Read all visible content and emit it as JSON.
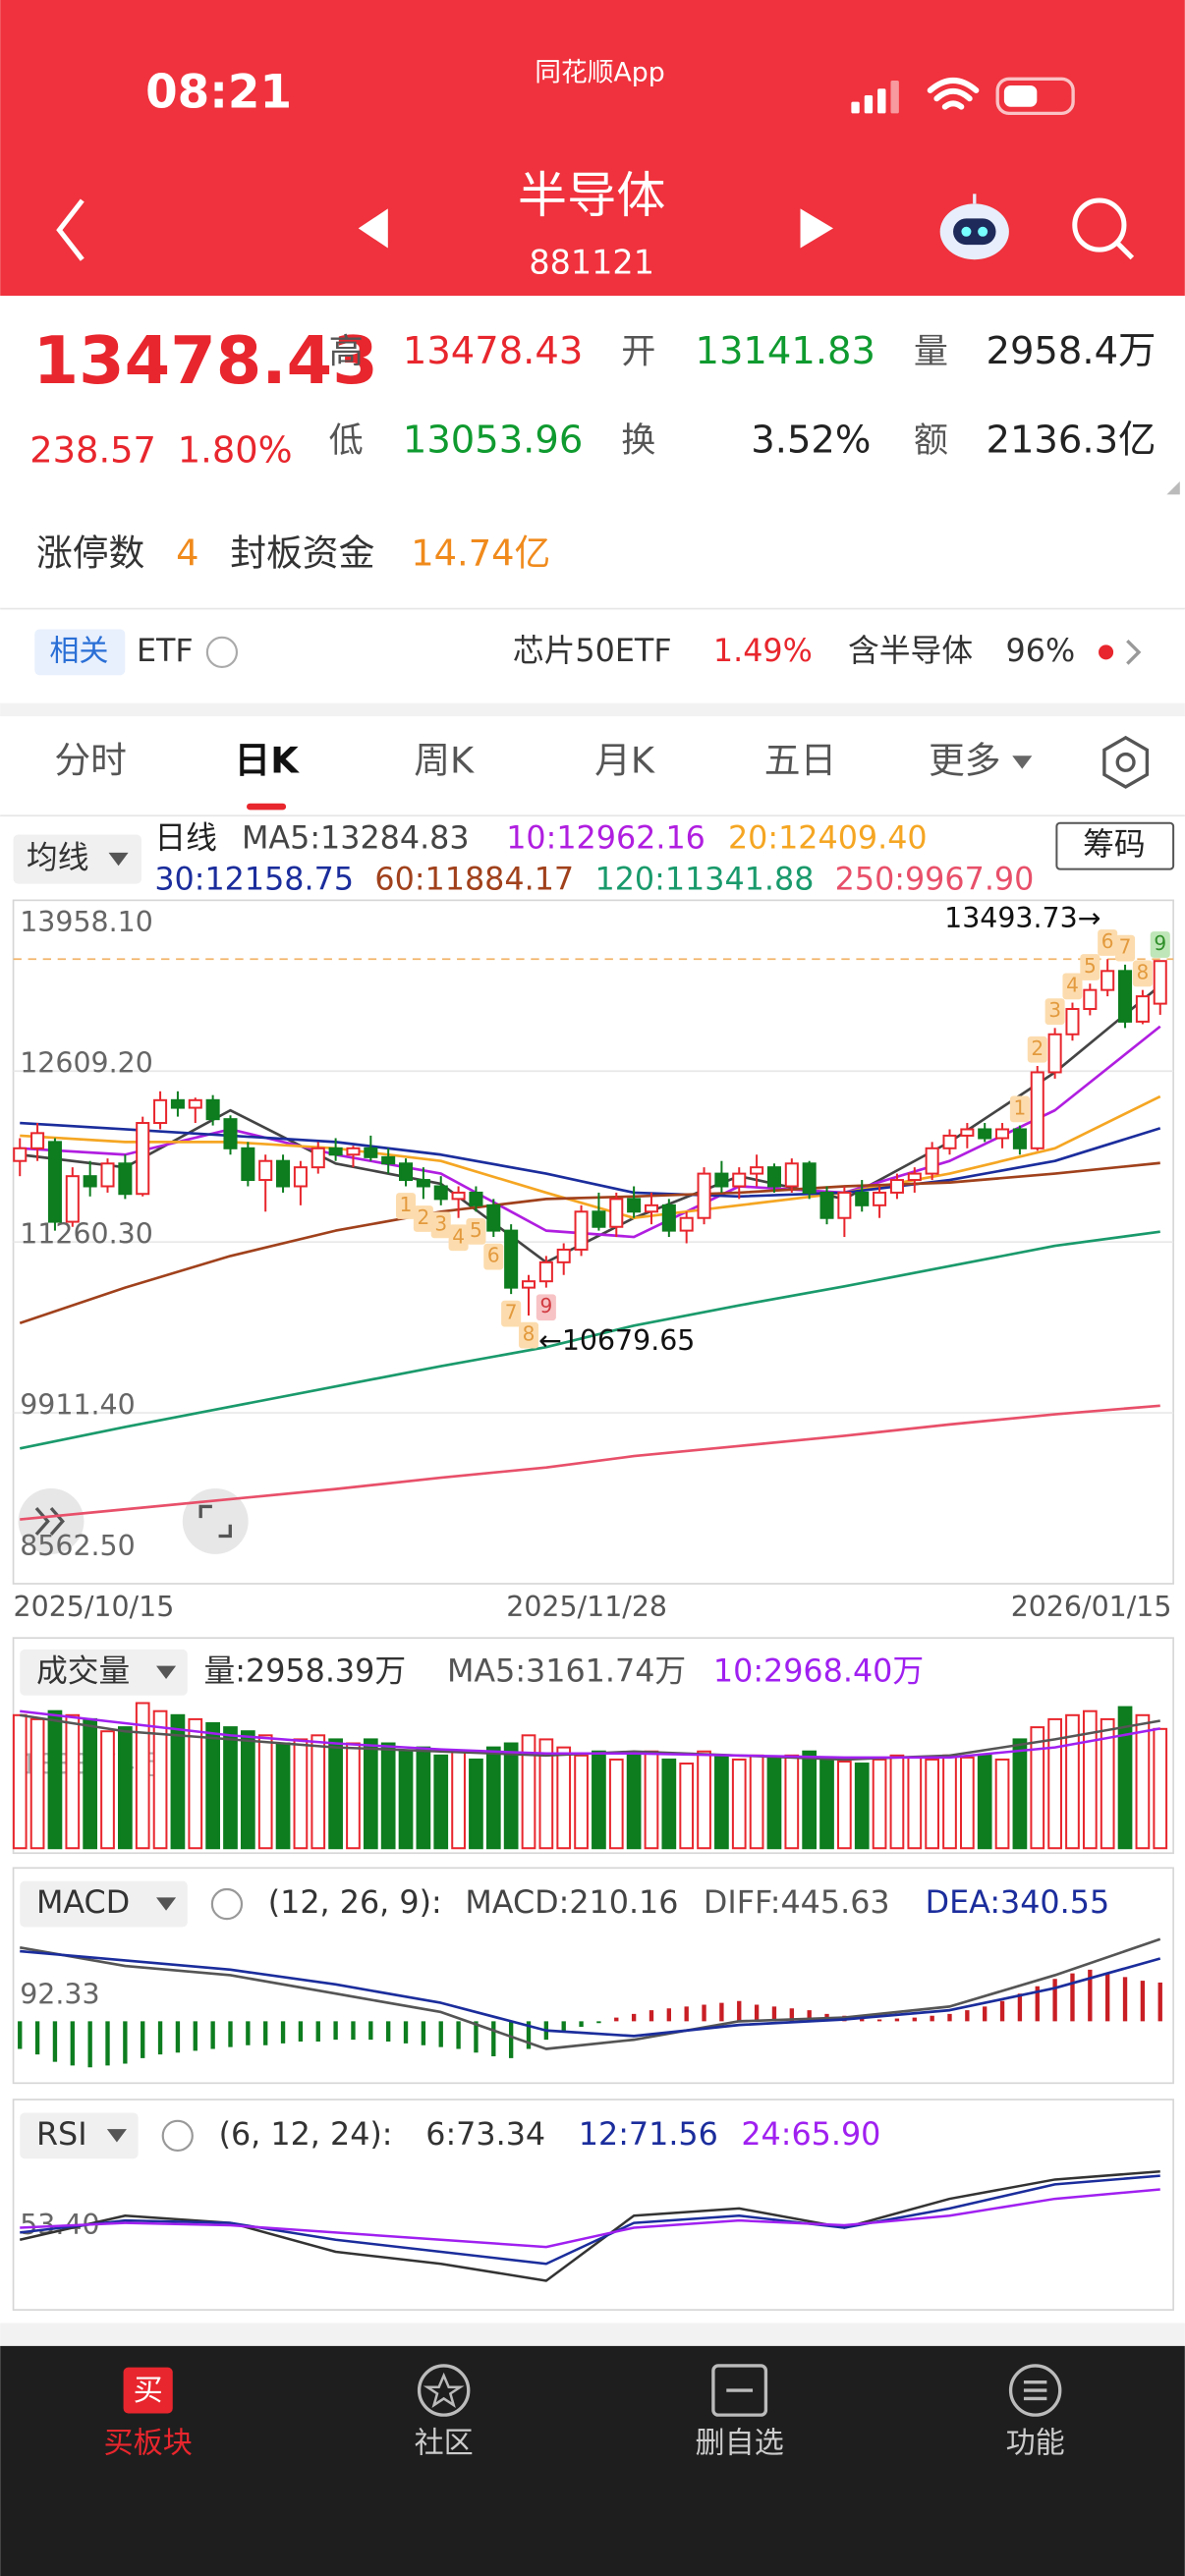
{
  "status": {
    "time": "08:21",
    "app": "同花顺App"
  },
  "header": {
    "title": "半导体",
    "code": "881121"
  },
  "quote": {
    "price": "13478.43",
    "change": "238.57",
    "change_pct": "1.80%",
    "color": "#e8262d",
    "fields": [
      {
        "label": "高",
        "value": "13478.43",
        "color": "#e8262d"
      },
      {
        "label": "开",
        "value": "13141.83",
        "color": "#0f9a2f"
      },
      {
        "label": "量",
        "value": "2958.4万",
        "color": "#222222"
      },
      {
        "label": "低",
        "value": "13053.96",
        "color": "#0f9a2f"
      },
      {
        "label": "换",
        "value": "3.52%",
        "color": "#222222"
      },
      {
        "label": "额",
        "value": "2136.3亿",
        "color": "#222222"
      }
    ]
  },
  "limit": {
    "label": "涨停数",
    "count": "4",
    "fund_label": "封板资金",
    "fund": "14.74亿"
  },
  "related": {
    "tag": "相关",
    "etf": "ETF",
    "items": [
      {
        "name": "芯片50ETF",
        "value": "1.49%"
      },
      {
        "name": "含半导体",
        "value": "96%"
      }
    ]
  },
  "tabs": [
    "分时",
    "日K",
    "周K",
    "月K",
    "五日",
    "更多"
  ],
  "active_tab": 1,
  "kline": {
    "selector": "均线",
    "period": "日线",
    "chip": "筹码",
    "up_color": "#e8262d",
    "down_color": "#0d7d1f",
    "ylim": [
      8562.5,
      13958.1
    ],
    "yticks": [
      {
        "value": 13958.1,
        "label": "13958.10"
      },
      {
        "value": 12609.2,
        "label": "12609.20"
      },
      {
        "value": 11260.3,
        "label": "11260.30"
      },
      {
        "value": 9911.4,
        "label": "9911.40"
      },
      {
        "value": 8562.5,
        "label": "8562.50"
      }
    ],
    "dates": [
      "2025/10/15",
      "2025/11/28",
      "2026/01/15"
    ],
    "high_mark": {
      "value": 13493.73,
      "label": "13493.73→"
    },
    "low_mark": {
      "value": 10679.65,
      "label": "←10679.65"
    },
    "td_down": [
      1,
      2,
      3,
      4,
      5,
      6,
      7,
      8,
      9
    ],
    "td_up": [
      1,
      2,
      3,
      4,
      5,
      6,
      7,
      8,
      9
    ],
    "ma": [
      {
        "label": "MA5:13284.83",
        "color": "#444444",
        "values": [
          11950,
          11850,
          12300,
          11880,
          11720,
          11100,
          11450,
          11780,
          11600,
          12050,
          12600,
          13284.83
        ]
      },
      {
        "label": "10:12962.16",
        "color": "#b01ee0",
        "values": [
          12000,
          11950,
          12150,
          11950,
          11800,
          11350,
          11300,
          11700,
          11650,
          11900,
          12300,
          12962.16
        ]
      },
      {
        "label": "20:12409.40",
        "color": "#f5a623",
        "values": [
          12100,
          12050,
          12050,
          12000,
          11900,
          11650,
          11450,
          11550,
          11650,
          11800,
          12000,
          12409.4
        ]
      },
      {
        "label": "30:12158.75",
        "color": "#1b2d9c",
        "values": [
          12200,
          12150,
          12100,
          12050,
          11950,
          11800,
          11650,
          11620,
          11650,
          11750,
          11900,
          12158.75
        ]
      },
      {
        "label": "60:11884.17",
        "color": "#a0411c",
        "values": [
          10620,
          10900,
          11150,
          11350,
          11500,
          11600,
          11620,
          11650,
          11700,
          11730,
          11800,
          11884.17
        ]
      },
      {
        "label": "120:11341.88",
        "color": "#1a9a6c",
        "values": [
          9630,
          9800,
          9960,
          10120,
          10280,
          10430,
          10600,
          10760,
          10910,
          11070,
          11230,
          11341.88
        ]
      },
      {
        "label": "250:9967.90",
        "color": "#e8506a",
        "values": [
          9070,
          9150,
          9230,
          9310,
          9400,
          9480,
          9570,
          9650,
          9730,
          9820,
          9900,
          9967.9
        ]
      }
    ],
    "candles": [
      [
        11900,
        12080,
        11780,
        12000
      ],
      [
        12000,
        12200,
        11900,
        12120
      ],
      [
        12050,
        12080,
        11350,
        11420
      ],
      [
        11420,
        11850,
        11380,
        11780
      ],
      [
        11780,
        11900,
        11620,
        11700
      ],
      [
        11700,
        11920,
        11650,
        11880
      ],
      [
        11880,
        11950,
        11600,
        11640
      ],
      [
        11640,
        12250,
        11620,
        12200
      ],
      [
        12200,
        12450,
        12150,
        12380
      ],
      [
        12380,
        12450,
        12250,
        12320
      ],
      [
        12320,
        12400,
        12200,
        12380
      ],
      [
        12380,
        12420,
        12180,
        12230
      ],
      [
        12230,
        12260,
        11950,
        12000
      ],
      [
        12000,
        12050,
        11700,
        11750
      ],
      [
        11750,
        11950,
        11500,
        11900
      ],
      [
        11900,
        11950,
        11650,
        11700
      ],
      [
        11700,
        11900,
        11550,
        11850
      ],
      [
        11850,
        12050,
        11800,
        12000
      ],
      [
        12000,
        12080,
        11900,
        11950
      ],
      [
        11950,
        12020,
        11850,
        12000
      ],
      [
        12000,
        12100,
        11900,
        11930
      ],
      [
        11930,
        12000,
        11800,
        11880
      ],
      [
        11880,
        11920,
        11700,
        11750
      ],
      [
        11750,
        11850,
        11600,
        11700
      ],
      [
        11700,
        11780,
        11550,
        11600
      ],
      [
        11600,
        11700,
        11450,
        11650
      ],
      [
        11650,
        11700,
        11500,
        11550
      ],
      [
        11550,
        11600,
        11300,
        11350
      ],
      [
        11350,
        11400,
        10850,
        10900
      ],
      [
        10900,
        11000,
        10679.65,
        10950
      ],
      [
        10950,
        11150,
        10900,
        11100
      ],
      [
        11100,
        11250,
        11000,
        11200
      ],
      [
        11200,
        11550,
        11150,
        11500
      ],
      [
        11500,
        11650,
        11350,
        11380
      ],
      [
        11380,
        11650,
        11300,
        11600
      ],
      [
        11600,
        11700,
        11450,
        11500
      ],
      [
        11500,
        11650,
        11400,
        11550
      ],
      [
        11550,
        11600,
        11300,
        11350
      ],
      [
        11350,
        11500,
        11250,
        11450
      ],
      [
        11450,
        11850,
        11400,
        11800
      ],
      [
        11800,
        11900,
        11650,
        11700
      ],
      [
        11700,
        11850,
        11600,
        11800
      ],
      [
        11800,
        11950,
        11700,
        11850
      ],
      [
        11850,
        11880,
        11650,
        11700
      ],
      [
        11700,
        11920,
        11650,
        11880
      ],
      [
        11880,
        11900,
        11600,
        11650
      ],
      [
        11650,
        11700,
        11400,
        11450
      ],
      [
        11450,
        11700,
        11300,
        11650
      ],
      [
        11650,
        11750,
        11500,
        11550
      ],
      [
        11550,
        11700,
        11450,
        11650
      ],
      [
        11650,
        11800,
        11600,
        11750
      ],
      [
        11750,
        11850,
        11650,
        11800
      ],
      [
        11800,
        12050,
        11750,
        12000
      ],
      [
        12000,
        12150,
        11950,
        12100
      ],
      [
        12100,
        12200,
        12000,
        12150
      ],
      [
        12150,
        12200,
        12050,
        12080
      ],
      [
        12080,
        12200,
        12000,
        12150
      ],
      [
        12150,
        12180,
        11950,
        12000
      ],
      [
        12000,
        12650,
        11980,
        12600
      ],
      [
        12600,
        12950,
        12550,
        12900
      ],
      [
        12900,
        13150,
        12850,
        13100
      ],
      [
        13100,
        13300,
        13050,
        13250
      ],
      [
        13250,
        13493.73,
        13200,
        13400
      ],
      [
        13400,
        13450,
        12950,
        13000
      ],
      [
        13000,
        13250,
        12980,
        13200
      ],
      [
        13141.83,
        13478.43,
        13053.96,
        13478.43
      ]
    ]
  },
  "volume": {
    "selector": "成交量",
    "current": "量:2958.39万",
    "ylim": [
      0,
      3667.48
    ],
    "yticks": [
      {
        "value": 1833.74,
        "label": "1833.74万"
      }
    ],
    "values": [
      3300,
      3200,
      3400,
      3300,
      3200,
      2900,
      3000,
      3600,
      3400,
      3300,
      3200,
      3100,
      3000,
      2900,
      2800,
      2600,
      2700,
      2800,
      2700,
      2600,
      2700,
      2600,
      2400,
      2500,
      2300,
      2400,
      2200,
      2500,
      2600,
      2800,
      2700,
      2500,
      2300,
      2400,
      2200,
      2300,
      2400,
      2200,
      2100,
      2400,
      2300,
      2200,
      2300,
      2250,
      2300,
      2400,
      2200,
      2150,
      2100,
      2200,
      2300,
      2250,
      2200,
      2300,
      2250,
      2300,
      2200,
      2700,
      3000,
      3200,
      3300,
      3400,
      3200,
      3500,
      3300,
      2958.39
    ],
    "lines": [
      {
        "label": "MA5:3161.74万",
        "color": "#555555",
        "values": [
          3300,
          2900,
          2700,
          2500,
          2400,
          2300,
          2400,
          2300,
          2200,
          2300,
          2700,
          3161.74
        ]
      },
      {
        "label": "10:2968.40万",
        "color": "#a020f0",
        "values": [
          3400,
          3100,
          2800,
          2600,
          2450,
          2350,
          2350,
          2300,
          2250,
          2250,
          2500,
          2968.4
        ]
      }
    ]
  },
  "macd": {
    "selector": "MACD",
    "params": "(12, 26, 9):",
    "hist_label": "MACD:210.16",
    "up_color": "#c81e24",
    "down_color": "#0d7d1f",
    "ylim": [
      -300,
      520
    ],
    "yticks": [
      92.33
    ],
    "values": [
      -150,
      -180,
      -220,
      -240,
      -250,
      -240,
      -230,
      -200,
      -180,
      -170,
      -160,
      -150,
      -140,
      -130,
      -130,
      -120,
      -110,
      -110,
      -100,
      -100,
      -100,
      -110,
      -120,
      -130,
      -140,
      -150,
      -170,
      -190,
      -200,
      -150,
      -100,
      -60,
      -30,
      -10,
      20,
      40,
      60,
      70,
      80,
      90,
      100,
      110,
      90,
      80,
      70,
      60,
      40,
      30,
      20,
      10,
      15,
      20,
      30,
      40,
      60,
      80,
      110,
      150,
      190,
      230,
      260,
      280,
      260,
      240,
      220,
      210.16
    ],
    "lines": [
      {
        "label": "DIFF:445.63",
        "color": "#555555",
        "values": [
          400,
          300,
          250,
          150,
          50,
          -150,
          -100,
          0,
          20,
          80,
          250,
          445.63
        ]
      },
      {
        "label": "DEA:340.55",
        "color": "#1b2d9c",
        "values": [
          380,
          330,
          280,
          200,
          100,
          -50,
          -80,
          -20,
          10,
          60,
          180,
          340.55
        ]
      }
    ]
  },
  "rsi": {
    "selector": "RSI",
    "params": "(6, 12, 24):",
    "ylim": [
      20,
      80
    ],
    "yticks": [
      {
        "value": 53.4,
        "label": "53.40"
      }
    ],
    "lines": [
      {
        "label": "6:73.34",
        "color": "#333333",
        "values": [
          45,
          55,
          52,
          40,
          35,
          28,
          55,
          58,
          50,
          62,
          70,
          73.34
        ]
      },
      {
        "label": "12:71.56",
        "color": "#1b2d9c",
        "values": [
          48,
          53,
          52,
          45,
          40,
          35,
          52,
          55,
          50,
          58,
          68,
          71.56
        ]
      },
      {
        "label": "24:65.90",
        "color": "#a020f0",
        "values": [
          50,
          52,
          51,
          48,
          45,
          42,
          50,
          53,
          51,
          55,
          62,
          65.9
        ]
      }
    ]
  },
  "nav": [
    "买板块",
    "社区",
    "删自选",
    "功能"
  ]
}
